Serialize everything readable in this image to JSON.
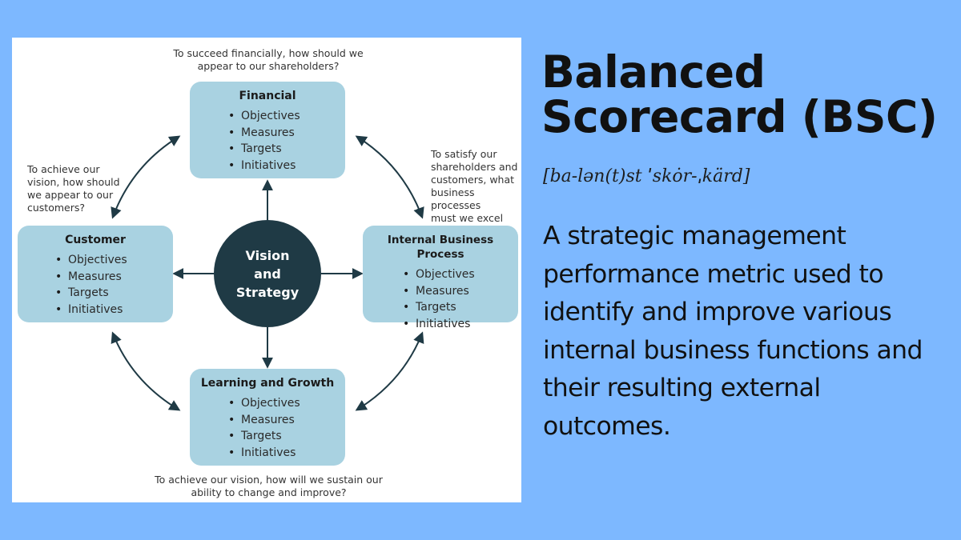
{
  "diagram": {
    "center": {
      "label": "Vision\nand\nStrategy"
    },
    "boxes": {
      "financial": {
        "title": "Financial",
        "items": [
          "Objectives",
          "Measures",
          "Targets",
          "Initiatives"
        ]
      },
      "customer": {
        "title": "Customer",
        "items": [
          "Objectives",
          "Measures",
          "Targets",
          "Initiatives"
        ]
      },
      "internal": {
        "title": "Internal Business Process",
        "items": [
          "Objectives",
          "Measures",
          "Targets",
          "Initiatives"
        ]
      },
      "learning": {
        "title": "Learning and Growth",
        "items": [
          "Objectives",
          "Measures",
          "Targets",
          "Initiatives"
        ]
      }
    },
    "questions": {
      "financial": [
        "To succeed financially, how should we",
        "appear to our shareholders?"
      ],
      "customer": [
        "To achieve our",
        "vision, how should",
        "we appear to our",
        "customers?"
      ],
      "internal": [
        "To satisfy our",
        "shareholders and",
        "customers, what",
        "business processes",
        "must we excel at?"
      ],
      "learning": [
        "To achieve our vision, how will we sustain our",
        "ability to change and improve?"
      ]
    },
    "colors": {
      "box": "#a9d2e1",
      "circle": "#1f3a45",
      "arrow": "#1f3a45"
    }
  },
  "headline": {
    "title_line1": "Balanced",
    "title_line2": "Scorecard (BSC)",
    "pronunciation": "[ba-lən(t)st ˈskȯr-ˌkärd]",
    "definition": "A strategic management performance metric used to identify and improve various internal business functions and their resulting external outcomes."
  },
  "colors": {
    "background": "#7db8ff",
    "panel": "#ffffff"
  }
}
